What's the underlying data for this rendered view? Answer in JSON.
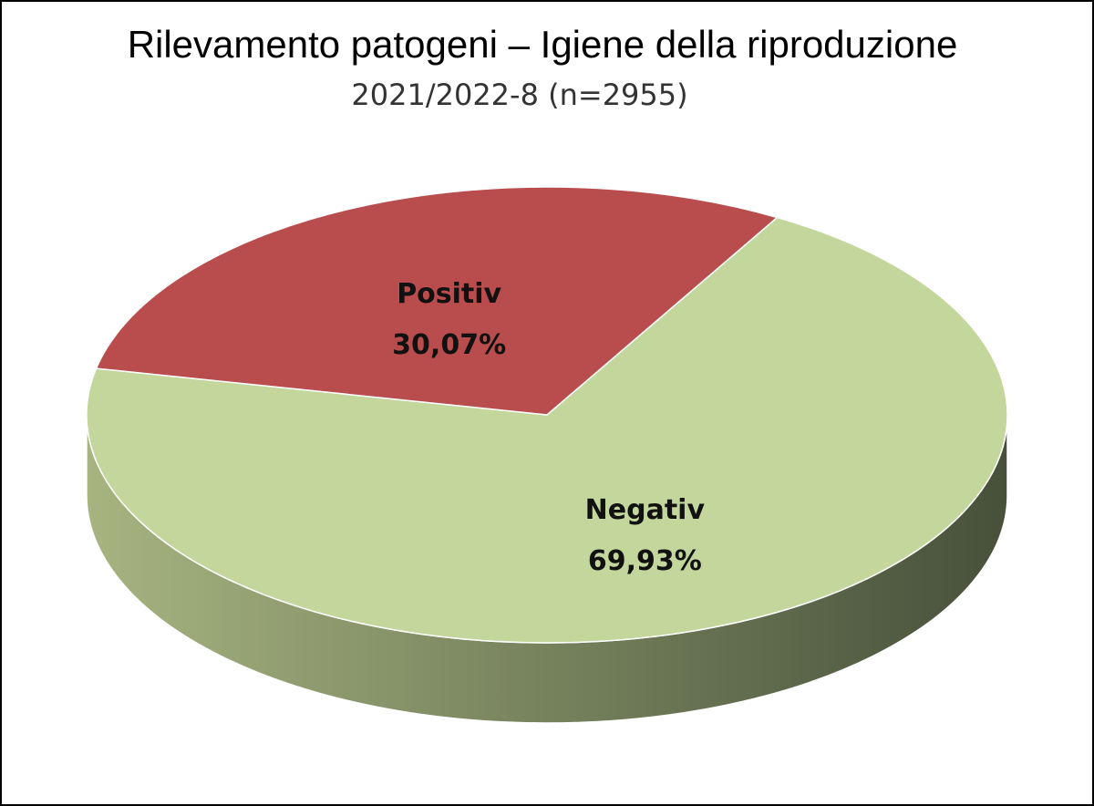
{
  "chart_data": {
    "type": "pie",
    "title": "Rilevamento patogeni – Igiene della riproduzione",
    "subtitle": "2021/2022-8  (n=2955)",
    "categories": [
      "Negativ",
      "Positiv"
    ],
    "values": [
      69.93,
      30.07
    ],
    "value_labels": [
      "69,93%",
      "30,07%"
    ],
    "colors": [
      "#c3d69b",
      "#b94c4c"
    ]
  }
}
